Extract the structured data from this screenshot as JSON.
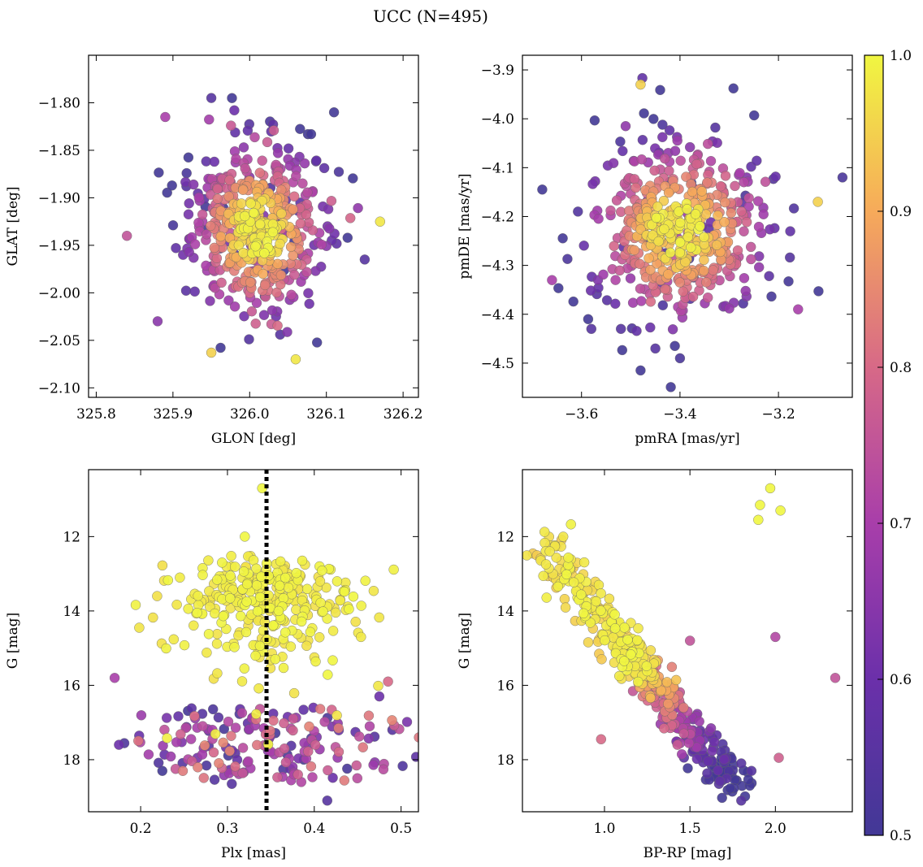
{
  "figure": {
    "title": "UCC (N=495)"
  },
  "colorbar": {
    "ticks": [
      "0.5",
      "0.6",
      "0.7",
      "0.8",
      "0.9",
      "1.0"
    ],
    "range": [
      0.5,
      1.0
    ],
    "colormap": "plasma"
  },
  "chart_data": [
    {
      "type": "scatter",
      "title": "",
      "xlabel": "GLON [deg]",
      "ylabel": "GLAT [deg]",
      "xlim": [
        325.79,
        326.22
      ],
      "ylim": [
        -2.11,
        -1.75
      ],
      "xticks": [
        "325.8",
        "325.9",
        "326.0",
        "326.1",
        "326.2"
      ],
      "yticks": [
        "−1.80",
        "−1.85",
        "−1.90",
        "−1.95",
        "−2.00",
        "−2.05",
        "−2.10"
      ],
      "cloud": {
        "n": 495,
        "x_center": 326.01,
        "x_sd": 0.045,
        "y_center": -1.935,
        "y_sd": 0.045
      },
      "highlighted_points": [
        {
          "x": 325.84,
          "y": -1.94,
          "c": 0.75
        },
        {
          "x": 325.95,
          "y": -1.795,
          "c": 0.55
        },
        {
          "x": 326.11,
          "y": -1.81,
          "c": 0.5
        },
        {
          "x": 325.98,
          "y": -1.808,
          "c": 0.6
        },
        {
          "x": 325.89,
          "y": -1.815,
          "c": 0.7
        },
        {
          "x": 326.06,
          "y": -2.07,
          "c": 0.98
        },
        {
          "x": 325.95,
          "y": -2.063,
          "c": 0.95
        },
        {
          "x": 326.17,
          "y": -1.925,
          "c": 0.98
        },
        {
          "x": 326.15,
          "y": -1.965,
          "c": 0.55
        },
        {
          "x": 325.88,
          "y": -2.03,
          "c": 0.65
        }
      ]
    },
    {
      "type": "scatter",
      "title": "",
      "xlabel": "pmRA [mas/yr]",
      "ylabel": "pmDE [mas/yr]",
      "xlim": [
        -3.72,
        -3.05
      ],
      "ylim": [
        -4.57,
        -3.87
      ],
      "xticks": [
        "−3.6",
        "−3.4",
        "−3.2"
      ],
      "yticks": [
        "−3.9",
        "−4.0",
        "−4.1",
        "−4.2",
        "−4.3",
        "−4.4",
        "−4.5"
      ],
      "cloud": {
        "n": 495,
        "x_center": -3.4,
        "x_sd": 0.09,
        "y_center": -4.23,
        "y_sd": 0.09
      },
      "highlighted_points": [
        {
          "x": -3.48,
          "y": -3.93,
          "c": 0.95
        },
        {
          "x": -3.07,
          "y": -4.12,
          "c": 0.52
        },
        {
          "x": -3.48,
          "y": -4.515,
          "c": 0.5
        },
        {
          "x": -3.4,
          "y": -4.49,
          "c": 0.52
        },
        {
          "x": -3.45,
          "y": -4.47,
          "c": 0.55
        },
        {
          "x": -3.66,
          "y": -4.33,
          "c": 0.7
        },
        {
          "x": -3.58,
          "y": -4.43,
          "c": 0.55
        },
        {
          "x": -3.52,
          "y": -4.43,
          "c": 0.55
        },
        {
          "x": -3.16,
          "y": -4.39,
          "c": 0.7
        },
        {
          "x": -3.12,
          "y": -4.17,
          "c": 0.95
        }
      ]
    },
    {
      "type": "scatter",
      "title": "",
      "xlabel": "Plx [mas]",
      "ylabel": "G [mag]",
      "xlim": [
        0.14,
        0.52
      ],
      "ylim": [
        19.4,
        10.2
      ],
      "y_inverted": true,
      "xticks": [
        "0.2",
        "0.3",
        "0.4",
        "0.5"
      ],
      "yticks": [
        "12",
        "14",
        "16",
        "18"
      ],
      "vline": {
        "x": 0.345,
        "style": "dotted",
        "color": "#000000"
      },
      "highlighted_points": [
        {
          "x": 0.34,
          "y": 10.7,
          "c": 1.0
        },
        {
          "x": 0.32,
          "y": 12.0,
          "c": 1.0
        },
        {
          "x": 0.265,
          "y": 14.05,
          "c": 1.0
        },
        {
          "x": 0.44,
          "y": 13.95,
          "c": 1.0
        },
        {
          "x": 0.17,
          "y": 15.8,
          "c": 0.7
        },
        {
          "x": 0.175,
          "y": 17.6,
          "c": 0.6
        },
        {
          "x": 0.49,
          "y": 17.2,
          "c": 0.55
        },
        {
          "x": 0.415,
          "y": 19.1,
          "c": 0.55
        },
        {
          "x": 0.305,
          "y": 18.65,
          "c": 0.55
        },
        {
          "x": 0.475,
          "y": 16.3,
          "c": 0.6
        },
        {
          "x": 0.485,
          "y": 15.9,
          "c": 0.8
        },
        {
          "x": 0.225,
          "y": 18.3,
          "c": 0.5
        }
      ]
    },
    {
      "type": "scatter",
      "title": "",
      "xlabel": "BP-RP [mag]",
      "ylabel": "G [mag]",
      "xlim": [
        0.52,
        2.45
      ],
      "ylim": [
        19.4,
        10.2
      ],
      "y_inverted": true,
      "xticks": [
        "1.0",
        "1.5",
        "2.0"
      ],
      "yticks": [
        "12",
        "14",
        "16",
        "18"
      ],
      "sequence": {
        "n": 430,
        "bp_rp_bright": 0.6,
        "g_bright": 12.0,
        "bp_rp_faint": 1.75,
        "g_faint": 18.6
      },
      "highlighted_points": [
        {
          "x": 1.97,
          "y": 10.7,
          "c": 1.0
        },
        {
          "x": 1.91,
          "y": 11.15,
          "c": 1.0
        },
        {
          "x": 2.03,
          "y": 11.3,
          "c": 1.0
        },
        {
          "x": 1.9,
          "y": 11.55,
          "c": 1.0
        },
        {
          "x": 2.35,
          "y": 15.8,
          "c": 0.75
        },
        {
          "x": 2.0,
          "y": 14.7,
          "c": 0.72
        },
        {
          "x": 2.02,
          "y": 17.95,
          "c": 0.78
        },
        {
          "x": 0.98,
          "y": 17.45,
          "c": 0.8
        },
        {
          "x": 1.5,
          "y": 14.8,
          "c": 0.75
        },
        {
          "x": 1.8,
          "y": 19.1,
          "c": 0.55
        },
        {
          "x": 1.67,
          "y": 18.65,
          "c": 0.55
        },
        {
          "x": 1.86,
          "y": 18.3,
          "c": 0.55
        },
        {
          "x": 1.8,
          "y": 18.1,
          "c": 0.55
        }
      ]
    }
  ]
}
